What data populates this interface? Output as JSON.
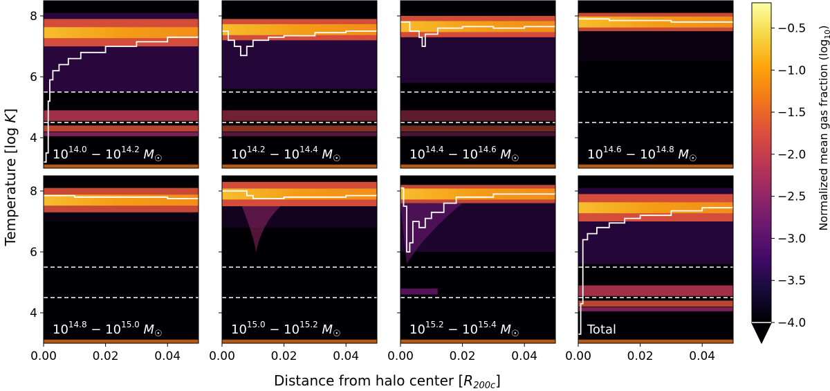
{
  "chart_data": {
    "type": "heatmap",
    "xlabel": "Distance from halo center [R_200c]",
    "xlabel_main": "Distance from halo center [",
    "xlabel_sym": "R",
    "xlabel_sub": "200c",
    "xlabel_end": "]",
    "ylabel": "Temperature [log K]",
    "ylabel_main": "Temperature [log",
    "ylabel_sym": "K",
    "ylabel_end": "]",
    "xlim": [
      0.0,
      0.05
    ],
    "ylim": [
      3.0,
      8.5
    ],
    "xticks": [
      0.0,
      0.02,
      0.04
    ],
    "xtick_labels": [
      "0.00",
      "0.02",
      "0.04"
    ],
    "yticks": [
      4,
      6,
      8
    ],
    "ytick_labels": [
      "4",
      "6",
      "8"
    ],
    "dashed_lines": [
      5.5,
      4.5
    ],
    "colorbar": {
      "label": "Normalized mean gas fraction (log₁₀)",
      "label_main": "Normalized mean gas fraction (log",
      "label_sub": "10",
      "label_end": ")",
      "range": [
        -4.0,
        -0.2
      ],
      "ticks": [
        -0.5,
        -1.0,
        -1.5,
        -2.0,
        -2.5,
        -3.0,
        -3.5,
        -4.0
      ],
      "tick_labels": [
        "−0.5",
        "−1.0",
        "−1.5",
        "−2.0",
        "−2.5",
        "−3.0",
        "−3.5",
        "−4.0"
      ],
      "extend": "min",
      "colormap": "inferno"
    },
    "panels": [
      {
        "id": "m140",
        "label": "10^14.0 − 10^14.2 M☉",
        "l1": "14.0",
        "l2": "14.2",
        "median_profile": [
          [
            0.0,
            3.2
          ],
          [
            0.0008,
            3.5
          ],
          [
            0.0015,
            5.2
          ],
          [
            0.002,
            5.9
          ],
          [
            0.003,
            6.2
          ],
          [
            0.005,
            6.4
          ],
          [
            0.008,
            6.6
          ],
          [
            0.012,
            6.8
          ],
          [
            0.02,
            7.0
          ],
          [
            0.03,
            7.15
          ],
          [
            0.04,
            7.3
          ],
          [
            0.05,
            7.35
          ]
        ]
      },
      {
        "id": "m142",
        "label": "10^14.2 − 10^14.4 M☉",
        "l1": "14.2",
        "l2": "14.4",
        "median_profile": [
          [
            0.0,
            7.5
          ],
          [
            0.002,
            7.2
          ],
          [
            0.004,
            7.0
          ],
          [
            0.006,
            6.7
          ],
          [
            0.008,
            7.0
          ],
          [
            0.01,
            7.2
          ],
          [
            0.015,
            7.3
          ],
          [
            0.02,
            7.35
          ],
          [
            0.03,
            7.45
          ],
          [
            0.04,
            7.5
          ],
          [
            0.05,
            7.55
          ]
        ]
      },
      {
        "id": "m144",
        "label": "10^14.4 − 10^14.6 M☉",
        "l1": "14.4",
        "l2": "14.6",
        "median_profile": [
          [
            0.0,
            7.8
          ],
          [
            0.003,
            7.5
          ],
          [
            0.006,
            7.3
          ],
          [
            0.007,
            7.0
          ],
          [
            0.008,
            7.4
          ],
          [
            0.012,
            7.6
          ],
          [
            0.02,
            7.65
          ],
          [
            0.03,
            7.6
          ],
          [
            0.04,
            7.65
          ],
          [
            0.05,
            7.65
          ]
        ]
      },
      {
        "id": "m146",
        "label": "10^14.6 − 10^14.8 M☉",
        "l1": "14.6",
        "l2": "14.8",
        "median_profile": [
          [
            0.0,
            7.9
          ],
          [
            0.01,
            7.85
          ],
          [
            0.02,
            7.85
          ],
          [
            0.03,
            7.8
          ],
          [
            0.04,
            7.8
          ],
          [
            0.05,
            7.75
          ]
        ]
      },
      {
        "id": "m148",
        "label": "10^14.8 − 10^15.0 M☉",
        "l1": "14.8",
        "l2": "15.0",
        "median_profile": [
          [
            0.0,
            7.85
          ],
          [
            0.01,
            7.8
          ],
          [
            0.02,
            7.8
          ],
          [
            0.03,
            7.8
          ],
          [
            0.04,
            7.75
          ],
          [
            0.05,
            7.75
          ]
        ]
      },
      {
        "id": "m150",
        "label": "10^15.0 − 10^15.2 M☉",
        "l1": "15.0",
        "l2": "15.2",
        "median_profile": [
          [
            0.0,
            8.0
          ],
          [
            0.004,
            8.0
          ],
          [
            0.008,
            7.85
          ],
          [
            0.01,
            7.75
          ],
          [
            0.015,
            7.75
          ],
          [
            0.02,
            7.8
          ],
          [
            0.03,
            7.8
          ],
          [
            0.04,
            7.85
          ],
          [
            0.05,
            7.9
          ]
        ]
      },
      {
        "id": "m152",
        "label": "10^15.2 − 10^15.4 M☉",
        "l1": "15.2",
        "l2": "15.4",
        "median_profile": [
          [
            0.0,
            8.1
          ],
          [
            0.001,
            7.5
          ],
          [
            0.002,
            6.0
          ],
          [
            0.003,
            6.3
          ],
          [
            0.004,
            7.0
          ],
          [
            0.006,
            6.8
          ],
          [
            0.008,
            7.1
          ],
          [
            0.01,
            7.3
          ],
          [
            0.014,
            7.6
          ],
          [
            0.018,
            7.8
          ],
          [
            0.03,
            7.9
          ],
          [
            0.05,
            7.95
          ]
        ]
      },
      {
        "id": "total",
        "label": "Total",
        "l1": "",
        "l2": "",
        "median_profile": [
          [
            0.0,
            3.3
          ],
          [
            0.0008,
            4.3
          ],
          [
            0.0015,
            6.4
          ],
          [
            0.003,
            6.6
          ],
          [
            0.006,
            6.8
          ],
          [
            0.01,
            6.95
          ],
          [
            0.015,
            7.1
          ],
          [
            0.02,
            7.2
          ],
          [
            0.03,
            7.35
          ],
          [
            0.04,
            7.45
          ],
          [
            0.05,
            7.5
          ]
        ]
      }
    ]
  }
}
